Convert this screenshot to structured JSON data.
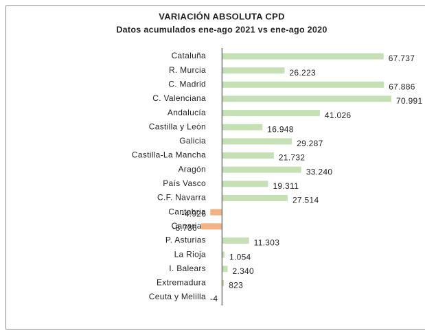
{
  "chart_data": {
    "type": "bar",
    "orientation": "horizontal",
    "title": "VARIACIÓN ABSOLUTA CPD",
    "subtitle": "Datos acumulados ene-ago 2021 vs ene-ago 2020",
    "categories": [
      "Cataluña",
      "R. Murcia",
      "C. Madrid",
      "C. Valenciana",
      "Andalucía",
      "Castilla y León",
      "Galicia",
      "Castilla-La Mancha",
      "Aragón",
      "País Vasco",
      "C.F. Navarra",
      "Cantabria",
      "Canarias",
      "P. Asturias",
      "La Rioja",
      "I. Balears",
      "Extremadura",
      "Ceuta y Melilla"
    ],
    "values": [
      67737,
      26223,
      67886,
      70991,
      41026,
      16948,
      29287,
      21732,
      33240,
      19311,
      27514,
      -4926,
      -8736,
      11303,
      1054,
      2340,
      823,
      -4
    ],
    "value_labels": [
      "67.737",
      "26.223",
      "67.886",
      "70.991",
      "41.026",
      "16.948",
      "29.287",
      "21.732",
      "33.240",
      "19.311",
      "27.514",
      "-4.926",
      "-8.736",
      "11.303",
      "1.054",
      "2.340",
      "823",
      "-4"
    ],
    "positive_color": "#c5e0b4",
    "negative_color": "#f4b183"
  }
}
